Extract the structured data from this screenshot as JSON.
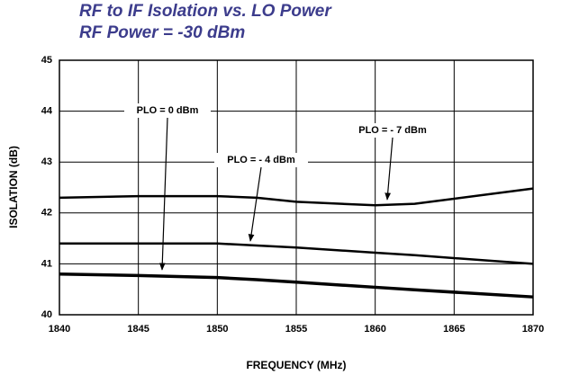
{
  "chart_data": {
    "type": "line",
    "title": "RF to IF Isolation vs. LO Power",
    "subtitle": "RF Power = -30 dBm",
    "x_label": "FREQUENCY (MHz)",
    "y_label": "ISOLATION (dB)",
    "x": [
      1840,
      1845,
      1850,
      1852.5,
      1855,
      1860,
      1862.5,
      1870
    ],
    "series": [
      {
        "name": "PLO = - 7 dBm",
        "color": "#000000",
        "values": [
          42.3,
          42.33,
          42.33,
          42.3,
          42.22,
          42.15,
          42.18,
          42.48
        ]
      },
      {
        "name": "PLO = - 4 dBm",
        "color": "#000000",
        "values": [
          41.4,
          41.4,
          41.4,
          41.36,
          41.32,
          41.22,
          41.17,
          41.0
        ]
      },
      {
        "name": "PLO = 0 dBm",
        "color": "#000000",
        "values": [
          40.8,
          40.77,
          40.73,
          40.69,
          40.64,
          40.54,
          40.49,
          40.35
        ]
      }
    ],
    "xlim": [
      1840,
      1870
    ],
    "xticks": [
      1840,
      1845,
      1850,
      1855,
      1860,
      1865,
      1870
    ],
    "ylim": [
      40,
      45
    ],
    "yticks": [
      40,
      41,
      42,
      43,
      44,
      45
    ],
    "grid": true
  }
}
